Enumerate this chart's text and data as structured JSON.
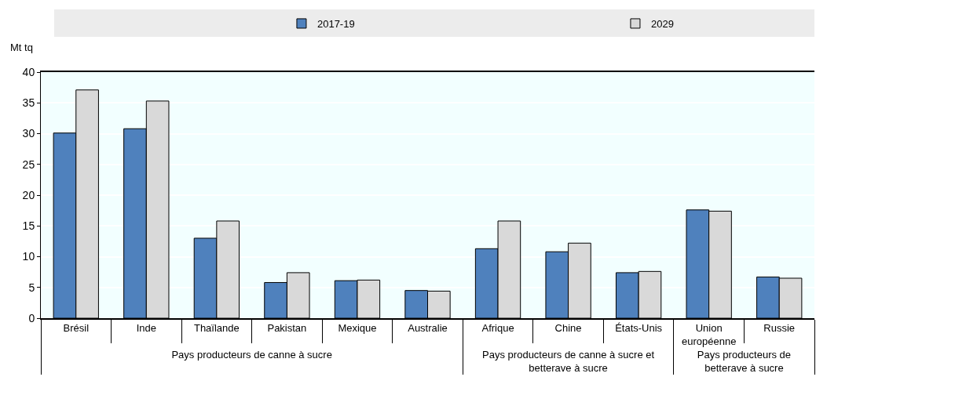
{
  "chart_data": {
    "type": "bar",
    "ylabel": "Mt tq",
    "categories": [
      "Brésil",
      "Inde",
      "Thaïlande",
      "Pakistan",
      "Mexique",
      "Australie",
      "Afrique",
      "Chine",
      "États-Unis",
      "Union européenne",
      "Russie"
    ],
    "series": [
      {
        "name": "2017-19",
        "color": "#4f81bd",
        "values": [
          30.1,
          30.8,
          13.0,
          5.8,
          6.1,
          4.5,
          11.3,
          10.8,
          7.4,
          17.6,
          6.7
        ]
      },
      {
        "name": "2029",
        "color": "#d9d9d9",
        "values": [
          37.1,
          35.3,
          15.8,
          7.4,
          6.2,
          4.4,
          15.8,
          12.2,
          7.6,
          17.4,
          6.5
        ]
      }
    ],
    "ylim": [
      0,
      40
    ],
    "yticks": [
      0,
      5,
      10,
      15,
      20,
      25,
      30,
      35,
      40
    ],
    "grid": "y",
    "legend": "top",
    "annotations": [
      "Pays producteurs de canne à sucre",
      "Pays producteurs de canne à sucre et betterave à sucre",
      "Pays producteurs de betterave à sucre"
    ]
  }
}
